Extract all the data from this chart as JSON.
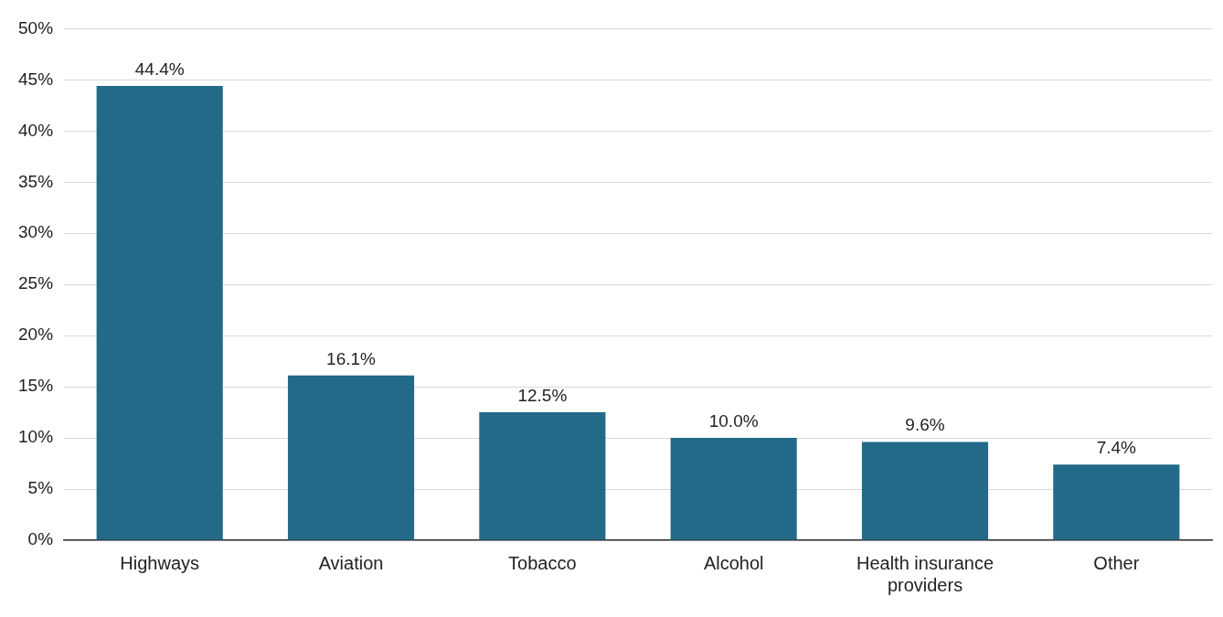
{
  "chart_data": {
    "type": "bar",
    "categories": [
      "Highways",
      "Aviation",
      "Tobacco",
      "Alcohol",
      "Health insurance providers",
      "Other"
    ],
    "values": [
      44.4,
      16.1,
      12.5,
      10.0,
      9.6,
      7.4
    ],
    "value_labels": [
      "44.4%",
      "16.1%",
      "12.5%",
      "10.0%",
      "9.6%",
      "7.4%"
    ],
    "color": "#236a89",
    "ylim": [
      0,
      50
    ],
    "yticks": [
      {
        "value": 0,
        "label": "0%"
      },
      {
        "value": 5,
        "label": "5%"
      },
      {
        "value": 10,
        "label": "10%"
      },
      {
        "value": 15,
        "label": "15%"
      },
      {
        "value": 20,
        "label": "20%"
      },
      {
        "value": 25,
        "label": "25%"
      },
      {
        "value": 30,
        "label": "30%"
      },
      {
        "value": 35,
        "label": "35%"
      },
      {
        "value": 40,
        "label": "40%"
      },
      {
        "value": 45,
        "label": "45%"
      },
      {
        "value": 50,
        "label": "50%"
      }
    ],
    "grid": "y"
  }
}
